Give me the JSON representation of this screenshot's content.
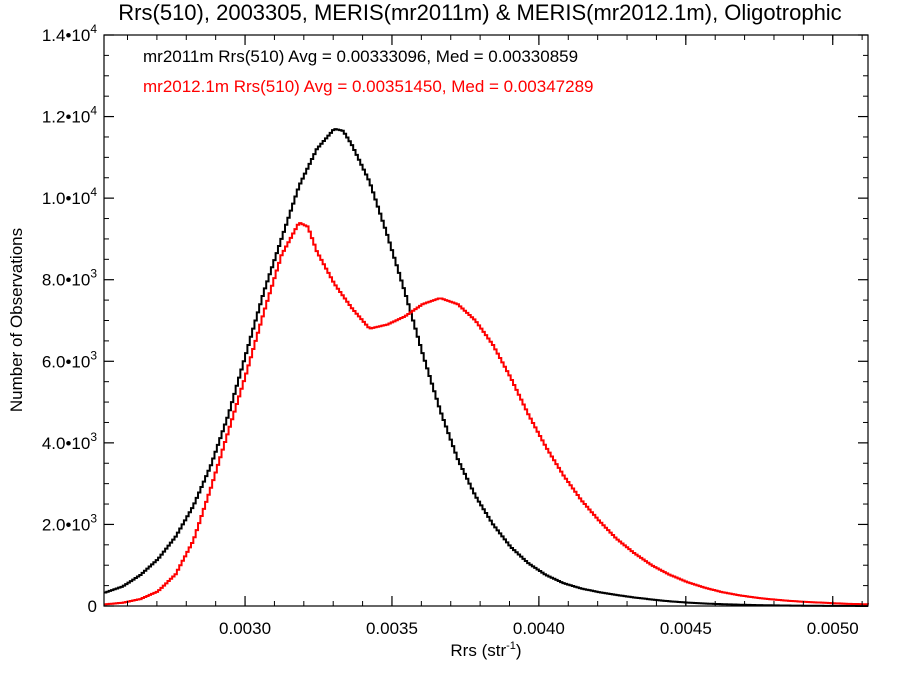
{
  "chart_data": {
    "type": "line",
    "style": "step-histogram",
    "title": "Rrs(510), 2003305, MERIS(mr2011m) & MERIS(mr2012.1m), Oligotrophic",
    "xlabel": "Rrs (str",
    "xlabel_sup": "-1",
    "xlabel_suffix": ")",
    "ylabel": "Number of Observations",
    "xlim": [
      0.00252,
      0.00512
    ],
    "ylim": [
      0,
      14000
    ],
    "grid": false,
    "x_ticks": [
      {
        "value": 0.003,
        "label": "0.0030"
      },
      {
        "value": 0.0035,
        "label": "0.0035"
      },
      {
        "value": 0.004,
        "label": "0.0040"
      },
      {
        "value": 0.0045,
        "label": "0.0045"
      },
      {
        "value": 0.005,
        "label": "0.0050"
      }
    ],
    "y_ticks": [
      {
        "value": 0,
        "mantissa": "0",
        "exp": ""
      },
      {
        "value": 2000,
        "mantissa": "2.0•10",
        "exp": "3"
      },
      {
        "value": 4000,
        "mantissa": "4.0•10",
        "exp": "3"
      },
      {
        "value": 6000,
        "mantissa": "6.0•10",
        "exp": "3"
      },
      {
        "value": 8000,
        "mantissa": "8.0•10",
        "exp": "3"
      },
      {
        "value": 10000,
        "mantissa": "1.0•10",
        "exp": "4"
      },
      {
        "value": 12000,
        "mantissa": "1.2•10",
        "exp": "4"
      },
      {
        "value": 14000,
        "mantissa": "1.4•10",
        "exp": "4"
      }
    ],
    "annotations": [
      {
        "text": "mr2011m Rrs(510) Avg = 0.00333096, Med = 0.00330859",
        "color": "#000000"
      },
      {
        "text": "mr2012.1m Rrs(510) Avg = 0.00351450, Med = 0.00347289",
        "color": "#ff0000"
      }
    ],
    "series": [
      {
        "color": "#000000",
        "points": [
          [
            0.00252,
            330
          ],
          [
            0.00258,
            480
          ],
          [
            0.00264,
            760
          ],
          [
            0.0027,
            1150
          ],
          [
            0.00276,
            1700
          ],
          [
            0.00282,
            2450
          ],
          [
            0.00288,
            3450
          ],
          [
            0.00294,
            4700
          ],
          [
            0.003,
            6200
          ],
          [
            0.00306,
            7700
          ],
          [
            0.00312,
            9000
          ],
          [
            0.00318,
            10300
          ],
          [
            0.00324,
            11200
          ],
          [
            0.0033,
            11700
          ],
          [
            0.00333,
            11650
          ],
          [
            0.00336,
            11300
          ],
          [
            0.00342,
            10400
          ],
          [
            0.00348,
            9100
          ],
          [
            0.00354,
            7700
          ],
          [
            0.0036,
            6200
          ],
          [
            0.00366,
            4800
          ],
          [
            0.00372,
            3600
          ],
          [
            0.00378,
            2700
          ],
          [
            0.00384,
            2000
          ],
          [
            0.0039,
            1450
          ],
          [
            0.00396,
            1050
          ],
          [
            0.00402,
            760
          ],
          [
            0.00408,
            560
          ],
          [
            0.00414,
            430
          ],
          [
            0.0042,
            340
          ],
          [
            0.00426,
            270
          ],
          [
            0.00432,
            210
          ],
          [
            0.00438,
            160
          ],
          [
            0.00444,
            115
          ],
          [
            0.0045,
            85
          ],
          [
            0.00456,
            60
          ],
          [
            0.00462,
            45
          ],
          [
            0.00468,
            32
          ],
          [
            0.00474,
            22
          ],
          [
            0.0048,
            15
          ],
          [
            0.00486,
            10
          ],
          [
            0.00492,
            6
          ],
          [
            0.00498,
            4
          ],
          [
            0.00504,
            2
          ],
          [
            0.00512,
            1
          ]
        ]
      },
      {
        "color": "#ff0000",
        "points": [
          [
            0.00252,
            40
          ],
          [
            0.00258,
            80
          ],
          [
            0.00264,
            170
          ],
          [
            0.0027,
            360
          ],
          [
            0.00276,
            780
          ],
          [
            0.00282,
            1600
          ],
          [
            0.00288,
            2900
          ],
          [
            0.00294,
            4300
          ],
          [
            0.003,
            5700
          ],
          [
            0.00306,
            7200
          ],
          [
            0.00312,
            8600
          ],
          [
            0.00318,
            9400
          ],
          [
            0.00321,
            9300
          ],
          [
            0.00324,
            8700
          ],
          [
            0.0033,
            7900
          ],
          [
            0.00336,
            7300
          ],
          [
            0.00342,
            6800
          ],
          [
            0.00348,
            6900
          ],
          [
            0.00354,
            7100
          ],
          [
            0.0036,
            7400
          ],
          [
            0.00366,
            7550
          ],
          [
            0.00372,
            7400
          ],
          [
            0.00378,
            7000
          ],
          [
            0.00384,
            6400
          ],
          [
            0.0039,
            5600
          ],
          [
            0.00396,
            4700
          ],
          [
            0.00402,
            3900
          ],
          [
            0.00408,
            3200
          ],
          [
            0.00414,
            2600
          ],
          [
            0.0042,
            2100
          ],
          [
            0.00426,
            1650
          ],
          [
            0.00432,
            1300
          ],
          [
            0.00438,
            1000
          ],
          [
            0.00444,
            770
          ],
          [
            0.0045,
            590
          ],
          [
            0.00456,
            450
          ],
          [
            0.00462,
            340
          ],
          [
            0.00468,
            260
          ],
          [
            0.00474,
            200
          ],
          [
            0.0048,
            155
          ],
          [
            0.00486,
            120
          ],
          [
            0.00492,
            95
          ],
          [
            0.00498,
            75
          ],
          [
            0.00504,
            55
          ],
          [
            0.00512,
            40
          ]
        ]
      }
    ]
  }
}
